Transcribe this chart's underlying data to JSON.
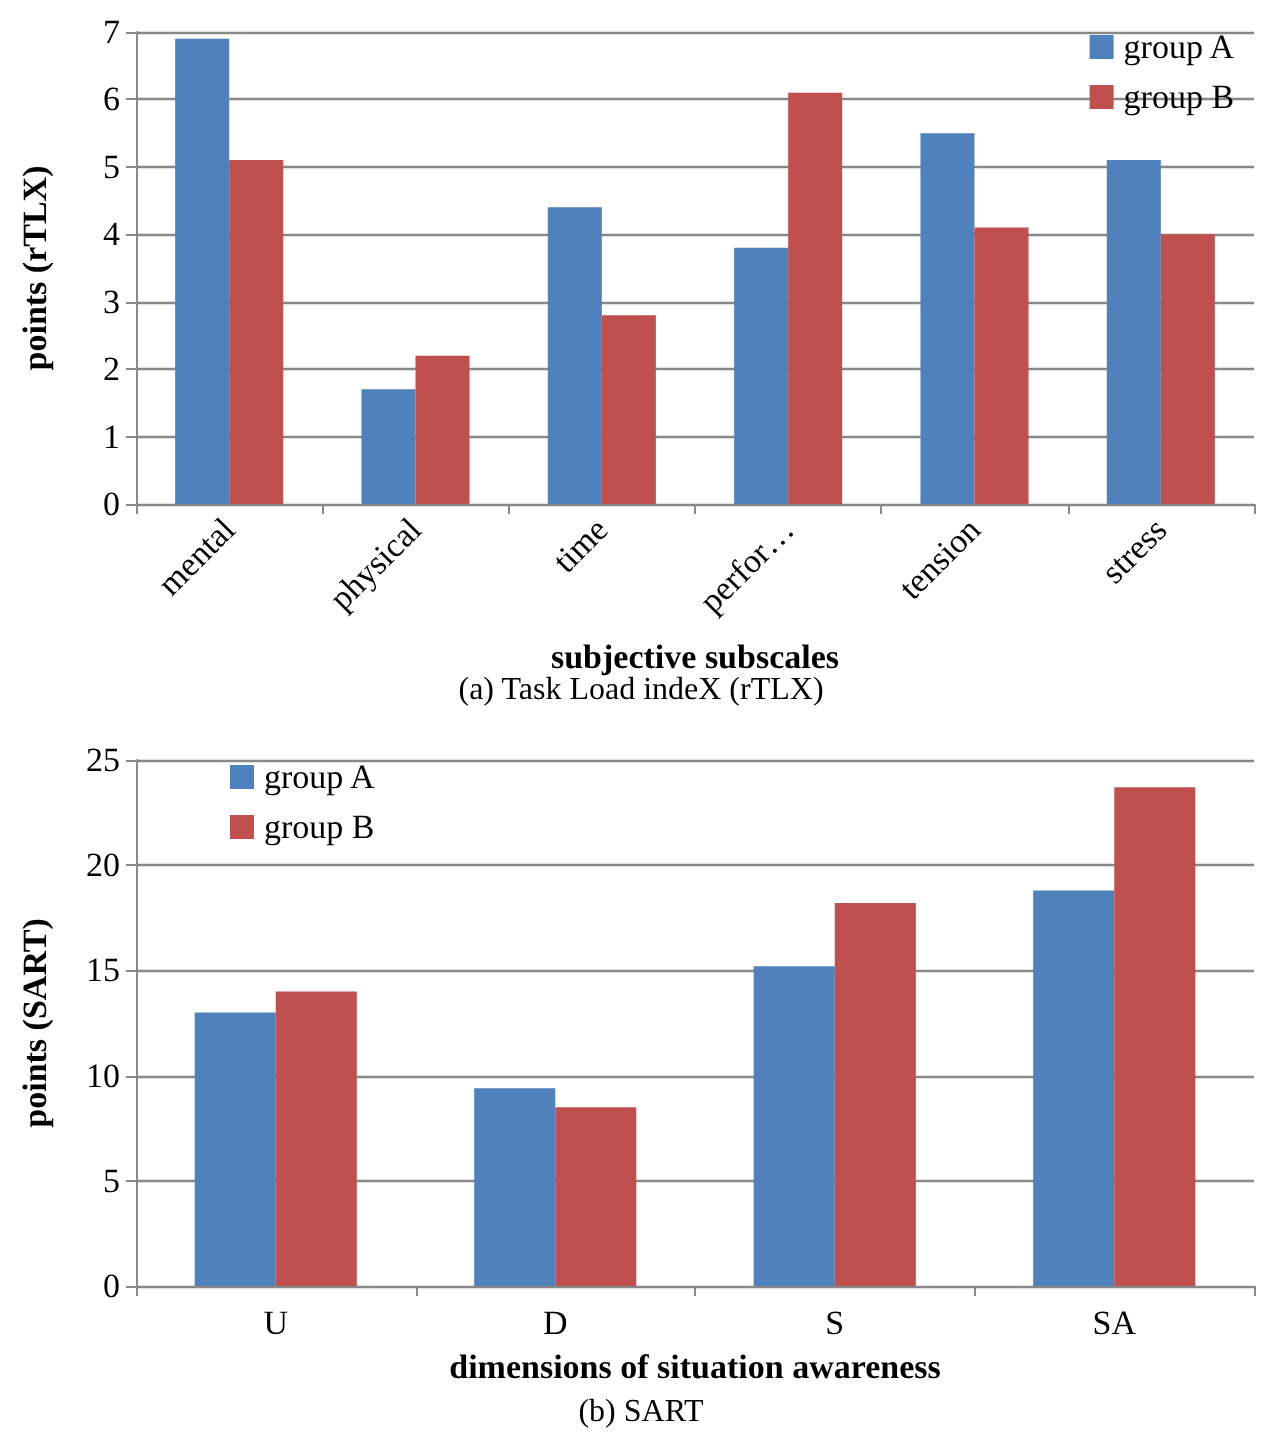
{
  "chart_data": [
    {
      "type": "bar",
      "title": "(a) Task Load indeX (rTLX)",
      "xlabel": "subjective subscales",
      "ylabel": "points (rTLX)",
      "categories": [
        "mental",
        "physical",
        "time",
        "perfor…",
        "tension",
        "stress"
      ],
      "series": [
        {
          "name": "group A",
          "color": "#4f81bd",
          "values": [
            6.9,
            1.7,
            4.4,
            3.8,
            5.5,
            5.1
          ]
        },
        {
          "name": "group B",
          "color": "#c0504d",
          "values": [
            5.1,
            2.2,
            2.8,
            6.1,
            4.1,
            4.0
          ]
        }
      ],
      "ylim": [
        0,
        7
      ],
      "yticks": [
        0,
        1,
        2,
        3,
        4,
        5,
        6,
        7
      ],
      "grid": "y",
      "legend": "top right"
    },
    {
      "type": "bar",
      "title": "(b) SART",
      "xlabel": "dimensions of situation awareness",
      "ylabel": "points (SART)",
      "categories": [
        "U",
        "D",
        "S",
        "SA"
      ],
      "series": [
        {
          "name": "group A",
          "color": "#4f81bd",
          "values": [
            13,
            9.4,
            15.2,
            18.8
          ]
        },
        {
          "name": "group B",
          "color": "#c0504d",
          "values": [
            14,
            8.5,
            18.2,
            23.7
          ]
        }
      ],
      "ylim": [
        0,
        25
      ],
      "yticks": [
        0,
        5,
        10,
        15,
        20,
        25
      ],
      "grid": "y",
      "legend": "top left"
    }
  ]
}
